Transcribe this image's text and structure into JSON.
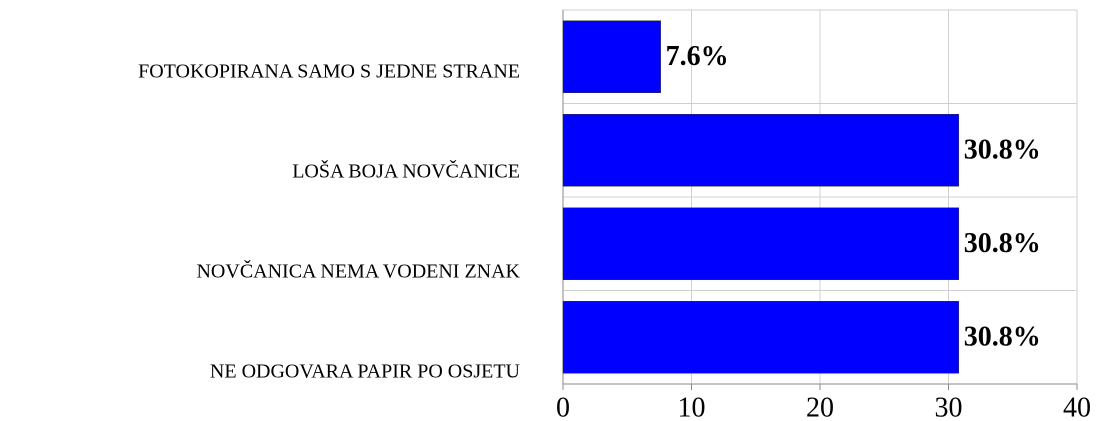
{
  "chart_data": {
    "type": "bar",
    "orientation": "horizontal",
    "categories": [
      "FOTOKOPIRANA SAMO S JEDNE STRANE",
      "LOŠA BOJA NOVČANICE",
      "NOVČANICA NEMA VODENI ZNAK",
      "NE ODGOVARA PAPIR PO OSJETU"
    ],
    "values": [
      7.6,
      30.8,
      30.8,
      30.8
    ],
    "value_labels": [
      "7.6%",
      "30.8%",
      "30.8%",
      "30.8%"
    ],
    "color": "#0000ff",
    "xlim": [
      0,
      40
    ],
    "xticks": [
      0,
      10,
      20,
      30,
      40
    ],
    "grid": true
  }
}
